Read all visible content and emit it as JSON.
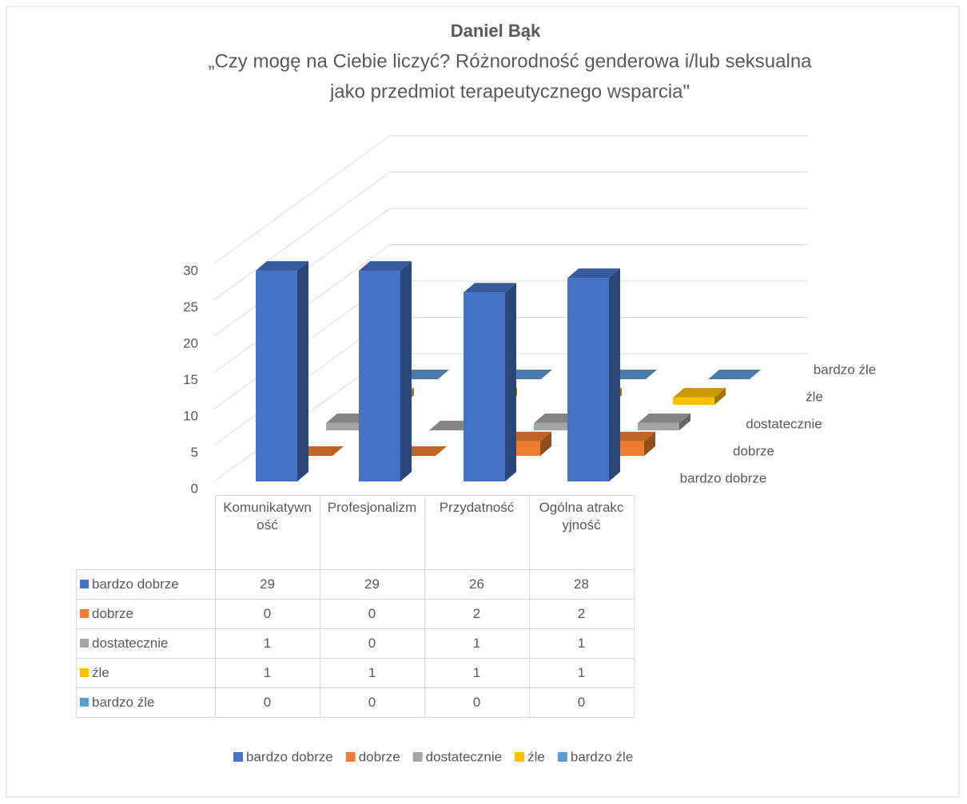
{
  "chart_data": {
    "type": "bar3d",
    "title": "Daniel Bąk",
    "subtitle": [
      "„Czy mogę na Ciebie liczyć? Różnorodność genderowa i/lub seksualna",
      "jako przedmiot terapeutycznego wsparcia\""
    ],
    "categories": [
      "Komunikatywność",
      "Profesjonalizm",
      "Przydatność",
      "Ogólna atrakcyjność"
    ],
    "series": [
      {
        "name": "bardzo dobrze",
        "color": "#4472c4",
        "values": [
          29,
          29,
          26,
          28
        ]
      },
      {
        "name": "dobrze",
        "color": "#ed7d31",
        "values": [
          0,
          0,
          2,
          2
        ]
      },
      {
        "name": "dostatecznie",
        "color": "#a5a5a5",
        "values": [
          1,
          0,
          1,
          1
        ]
      },
      {
        "name": "źle",
        "color": "#ffc000",
        "values": [
          1,
          1,
          1,
          1
        ]
      },
      {
        "name": "bardzo źle",
        "color": "#5b9bd5",
        "values": [
          0,
          0,
          0,
          0
        ]
      }
    ],
    "ylim": [
      0,
      30
    ],
    "yticks": [
      0,
      5,
      10,
      15,
      20,
      25,
      30
    ],
    "grid": true,
    "data_table": true,
    "legend": "bottom"
  }
}
